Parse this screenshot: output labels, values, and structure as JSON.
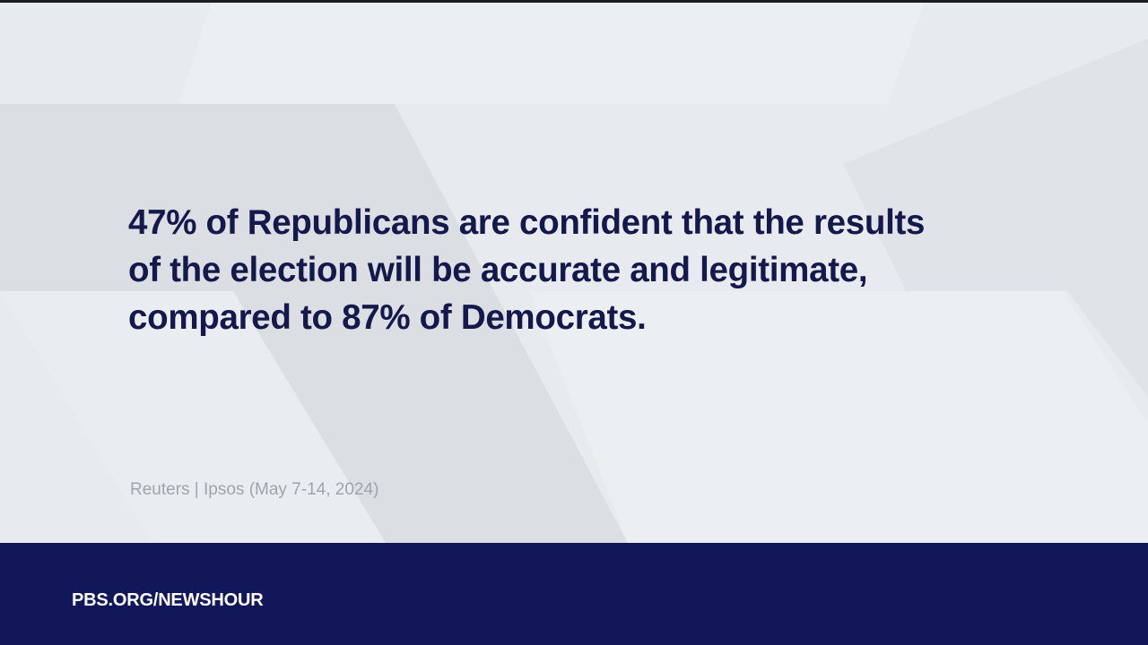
{
  "statement": {
    "lines": [
      "47% of Republicans are confident that the results",
      "of the election will be accurate and legitimate,",
      "compared to 87% of Democrats."
    ]
  },
  "source": "Reuters | Ipsos (May 7-14, 2024)",
  "footer": {
    "url": "PBS.ORG/NEWSHOUR"
  },
  "colors": {
    "headline": "#14184a",
    "footer_bar": "#12175a",
    "source_text": "#9ea5ad",
    "background": "#e6eaee"
  }
}
